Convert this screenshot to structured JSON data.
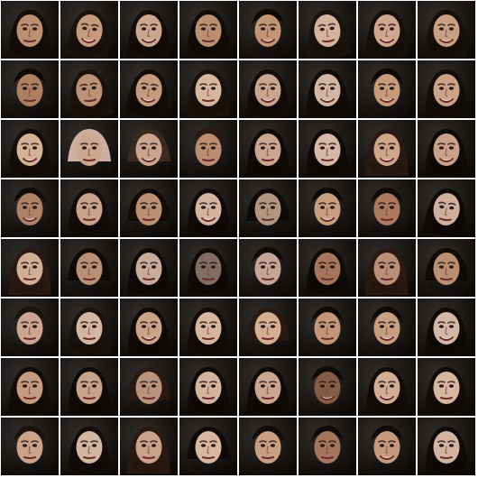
{
  "grid": {
    "rows": 8,
    "cols": 8,
    "tiles": [
      {
        "bg": "#0b0806",
        "skin": "#c99a7c",
        "hair": "#140c08",
        "hairLen": 2,
        "smile": 0,
        "head": 0
      },
      {
        "bg": "#0e0a07",
        "skin": "#d2a486",
        "hair": "#1a110b",
        "hairLen": 2,
        "smile": 1,
        "head": 1
      },
      {
        "bg": "#0a0706",
        "skin": "#d9b29a",
        "hair": "#120b08",
        "hairLen": 2,
        "smile": 1,
        "head": 0
      },
      {
        "bg": "#3a2a1a",
        "skin": "#c7987a",
        "hair": "#110b07",
        "hairLen": 2,
        "smile": 0,
        "head": 0
      },
      {
        "bg": "#0c0907",
        "skin": "#cf9f7e",
        "hair": "#0d0906",
        "hairLen": 0,
        "smile": 1,
        "head": 0
      },
      {
        "bg": "#5c4632",
        "skin": "#e2c0a8",
        "hair": "#1b120c",
        "hairLen": 2,
        "smile": 0,
        "head": -1
      },
      {
        "bg": "#3b2b1c",
        "skin": "#dcb297",
        "hair": "#160e09",
        "hairLen": 2,
        "smile": 1,
        "head": 0
      },
      {
        "bg": "#2b1e14",
        "skin": "#d7aa8c",
        "hair": "#160e09",
        "hairLen": 2,
        "smile": 1,
        "head": 0
      },
      {
        "bg": "#5a4029",
        "skin": "#b9876a",
        "hair": "#0e0906",
        "hairLen": 0,
        "smile": 0,
        "head": 0
      },
      {
        "bg": "#3a2a1c",
        "skin": "#c89b80",
        "hair": "#1a110b",
        "hairLen": 2,
        "smile": 0,
        "head": -1
      },
      {
        "bg": "#0b0806",
        "skin": "#d2a486",
        "hair": "#120b08",
        "hairLen": 2,
        "smile": 1,
        "head": 1
      },
      {
        "bg": "#2a1d13",
        "skin": "#e5c3ab",
        "hair": "#1a110b",
        "hairLen": 2,
        "smile": 0,
        "head": 0
      },
      {
        "bg": "#0c0907",
        "skin": "#d7b19a",
        "hair": "#120b08",
        "hairLen": 2,
        "smile": 1,
        "head": 0
      },
      {
        "bg": "#0f0b08",
        "skin": "#e1c3b0",
        "hair": "#110b07",
        "hairLen": 2,
        "smile": 1,
        "head": 0
      },
      {
        "bg": "#6a4a33",
        "skin": "#d3a685",
        "hair": "#0d0906",
        "hairLen": 0,
        "smile": 1,
        "head": 0
      },
      {
        "bg": "#2b1e14",
        "skin": "#d8ae92",
        "hair": "#140c08",
        "hairLen": 2,
        "smile": 1,
        "head": 0
      },
      {
        "bg": "#0b0806",
        "skin": "#e2be9f",
        "hair": "#140c08",
        "hairLen": 2,
        "smile": 1,
        "head": 0
      },
      {
        "bg": "#3b2a1d",
        "skin": "#d9b39b",
        "hair": "#d1b3a4",
        "hairLen": 1,
        "smile": 0,
        "head": 0
      },
      {
        "bg": "#1a130e",
        "skin": "#d8b09a",
        "hair": "#3a2a22",
        "hairLen": 1,
        "smile": 1,
        "head": 0
      },
      {
        "bg": "#caa697",
        "skin": "#c7977a",
        "hair": "#2a1a12",
        "hairLen": 0,
        "smile": 0,
        "head": 0
      },
      {
        "bg": "#0b0806",
        "skin": "#d7b09a",
        "hair": "#0f0a07",
        "hairLen": 2,
        "smile": 0,
        "head": 0
      },
      {
        "bg": "#0b0806",
        "skin": "#e3c4b2",
        "hair": "#0f0a07",
        "hairLen": 2,
        "smile": 0,
        "head": 0
      },
      {
        "bg": "#3a2a1c",
        "skin": "#dbb294",
        "hair": "#2a1a12",
        "hairLen": 2,
        "smile": 1,
        "head": 0
      },
      {
        "bg": "#0f0b08",
        "skin": "#d7ad94",
        "hair": "#0f0a07",
        "hairLen": 2,
        "smile": 1,
        "head": 0
      },
      {
        "bg": "#5a4029",
        "skin": "#b98b6d",
        "hair": "#110b07",
        "hairLen": 0,
        "smile": 1,
        "head": 0
      },
      {
        "bg": "#3b2a1d",
        "skin": "#d6ad94",
        "hair": "#120b08",
        "hairLen": 2,
        "smile": 0,
        "head": 0
      },
      {
        "bg": "#c8b0a6",
        "skin": "#c7987a",
        "hair": "#120b08",
        "hairLen": 1,
        "smile": 0,
        "head": 0
      },
      {
        "bg": "#0b0806",
        "skin": "#e0c0aa",
        "hair": "#0f0a07",
        "hairLen": 2,
        "smile": 1,
        "head": 0
      },
      {
        "bg": "#0b0806",
        "skin": "#bfa08a",
        "hair": "#0f0a07",
        "hairLen": 1,
        "smile": 0,
        "head": 0
      },
      {
        "bg": "#0f0b08",
        "skin": "#d6a98a",
        "hair": "#0d0906",
        "hairLen": 0,
        "smile": 1,
        "head": 0
      },
      {
        "bg": "#0f0b08",
        "skin": "#b68266",
        "hair": "#110b07",
        "hairLen": 0,
        "smile": 0,
        "head": 0
      },
      {
        "bg": "#0b0806",
        "skin": "#ddbba6",
        "hair": "#0f0a07",
        "hairLen": 2,
        "smile": 0,
        "head": 1
      },
      {
        "bg": "#0b0806",
        "skin": "#e0b9a0",
        "hair": "#2a1a12",
        "hairLen": 2,
        "smile": 0,
        "head": 0
      },
      {
        "bg": "#1a120c",
        "skin": "#c59a7e",
        "hair": "#0f0a07",
        "hairLen": 1,
        "smile": 0,
        "head": 0
      },
      {
        "bg": "#0b0806",
        "skin": "#d7b7a6",
        "hair": "#0f0a07",
        "hairLen": 2,
        "smile": 0,
        "head": 0
      },
      {
        "bg": "#0b0806",
        "skin": "#8c7466",
        "hair": "#0f0a07",
        "hairLen": 2,
        "smile": 0,
        "head": 0
      },
      {
        "bg": "#0b0806",
        "skin": "#d2b0a0",
        "hair": "#0f0a07",
        "hairLen": 0,
        "smile": 0,
        "head": 0
      },
      {
        "bg": "#c8b0a6",
        "skin": "#b07d63",
        "hair": "#0f0a07",
        "hairLen": 2,
        "smile": 0,
        "head": 0
      },
      {
        "bg": "#0b0806",
        "skin": "#c79a80",
        "hair": "#2a1a12",
        "hairLen": 2,
        "smile": 0,
        "head": 0
      },
      {
        "bg": "#0b0806",
        "skin": "#c7987a",
        "hair": "#0f0a07",
        "hairLen": 1,
        "smile": 0,
        "head": 0
      },
      {
        "bg": "#0b0806",
        "skin": "#d8b09a",
        "hair": "#1a110b",
        "hairLen": 0,
        "smile": 0,
        "head": 0
      },
      {
        "bg": "#7a5a44",
        "skin": "#e1c3ad",
        "hair": "#1a110b",
        "hairLen": 2,
        "smile": 0,
        "head": 0
      },
      {
        "bg": "#0b0806",
        "skin": "#d8ae92",
        "hair": "#0f0a07",
        "hairLen": 2,
        "smile": 1,
        "head": 0
      },
      {
        "bg": "#d2b4a6",
        "skin": "#e5c3ab",
        "hair": "#120b08",
        "hairLen": 2,
        "smile": 0,
        "head": 0
      },
      {
        "bg": "#1a130e",
        "skin": "#e3b99d",
        "hair": "#2a1a12",
        "hairLen": 1,
        "smile": 0,
        "head": 0
      },
      {
        "bg": "#0b0806",
        "skin": "#d0a082",
        "hair": "#0f0a07",
        "hairLen": 0,
        "smile": 0,
        "head": 0
      },
      {
        "bg": "#0b0806",
        "skin": "#d4a98a",
        "hair": "#0f0a07",
        "hairLen": 0,
        "smile": 1,
        "head": 0
      },
      {
        "bg": "#0b0806",
        "skin": "#e2c4b1",
        "hair": "#0f0a07",
        "hairLen": 2,
        "smile": 1,
        "head": 0
      },
      {
        "bg": "#2a1d13",
        "skin": "#d1a588",
        "hair": "#120b08",
        "hairLen": 2,
        "smile": 0,
        "head": 0
      },
      {
        "bg": "#0b0806",
        "skin": "#d6ad94",
        "hair": "#0f0a07",
        "hairLen": 2,
        "smile": 0,
        "head": 0
      },
      {
        "bg": "#3b2a1d",
        "skin": "#c59d84",
        "hair": "#2a1a12",
        "hairLen": 1,
        "smile": 0,
        "head": 0
      },
      {
        "bg": "#3b2a1d",
        "skin": "#e0c0aa",
        "hair": "#0f0a07",
        "hairLen": 2,
        "smile": 0,
        "head": 0
      },
      {
        "bg": "#0b0806",
        "skin": "#d7b09a",
        "hair": "#0f0a07",
        "hairLen": 2,
        "smile": 0,
        "head": 0
      },
      {
        "bg": "#3b2a1d",
        "skin": "#8e624b",
        "hair": "#0f0a07",
        "hairLen": 0,
        "smile": 1,
        "head": 0
      },
      {
        "bg": "#3b2a1d",
        "skin": "#e0b9a0",
        "hair": "#120b08",
        "hairLen": 2,
        "smile": 1,
        "head": 0
      },
      {
        "bg": "#2b1e14",
        "skin": "#e5c3ab",
        "hair": "#120b08",
        "hairLen": 2,
        "smile": 0,
        "head": 0
      },
      {
        "bg": "#0b0806",
        "skin": "#d8ae92",
        "hair": "#1a110b",
        "hairLen": 0,
        "smile": 0,
        "head": 0
      },
      {
        "bg": "#caa697",
        "skin": "#e1c3ad",
        "hair": "#120b08",
        "hairLen": 2,
        "smile": 0,
        "head": 0
      },
      {
        "bg": "#6a4a33",
        "skin": "#d7ad94",
        "hair": "#2a1a12",
        "hairLen": 2,
        "smile": 0,
        "head": 0
      },
      {
        "bg": "#0b0806",
        "skin": "#e5c3ab",
        "hair": "#0f0a07",
        "hairLen": 1,
        "smile": 0,
        "head": 0
      },
      {
        "bg": "#caa697",
        "skin": "#d6a98a",
        "hair": "#0f0a07",
        "hairLen": 0,
        "smile": 0,
        "head": 0
      },
      {
        "bg": "#0b0806",
        "skin": "#b07d63",
        "hair": "#0f0a07",
        "hairLen": 0,
        "smile": 0,
        "head": 0
      },
      {
        "bg": "#0b0806",
        "skin": "#d2a486",
        "hair": "#0f0a07",
        "hairLen": 0,
        "smile": 1,
        "head": 0
      },
      {
        "bg": "#0b0806",
        "skin": "#e0c0aa",
        "hair": "#0f0a07",
        "hairLen": 2,
        "smile": 0,
        "head": 0
      }
    ]
  }
}
